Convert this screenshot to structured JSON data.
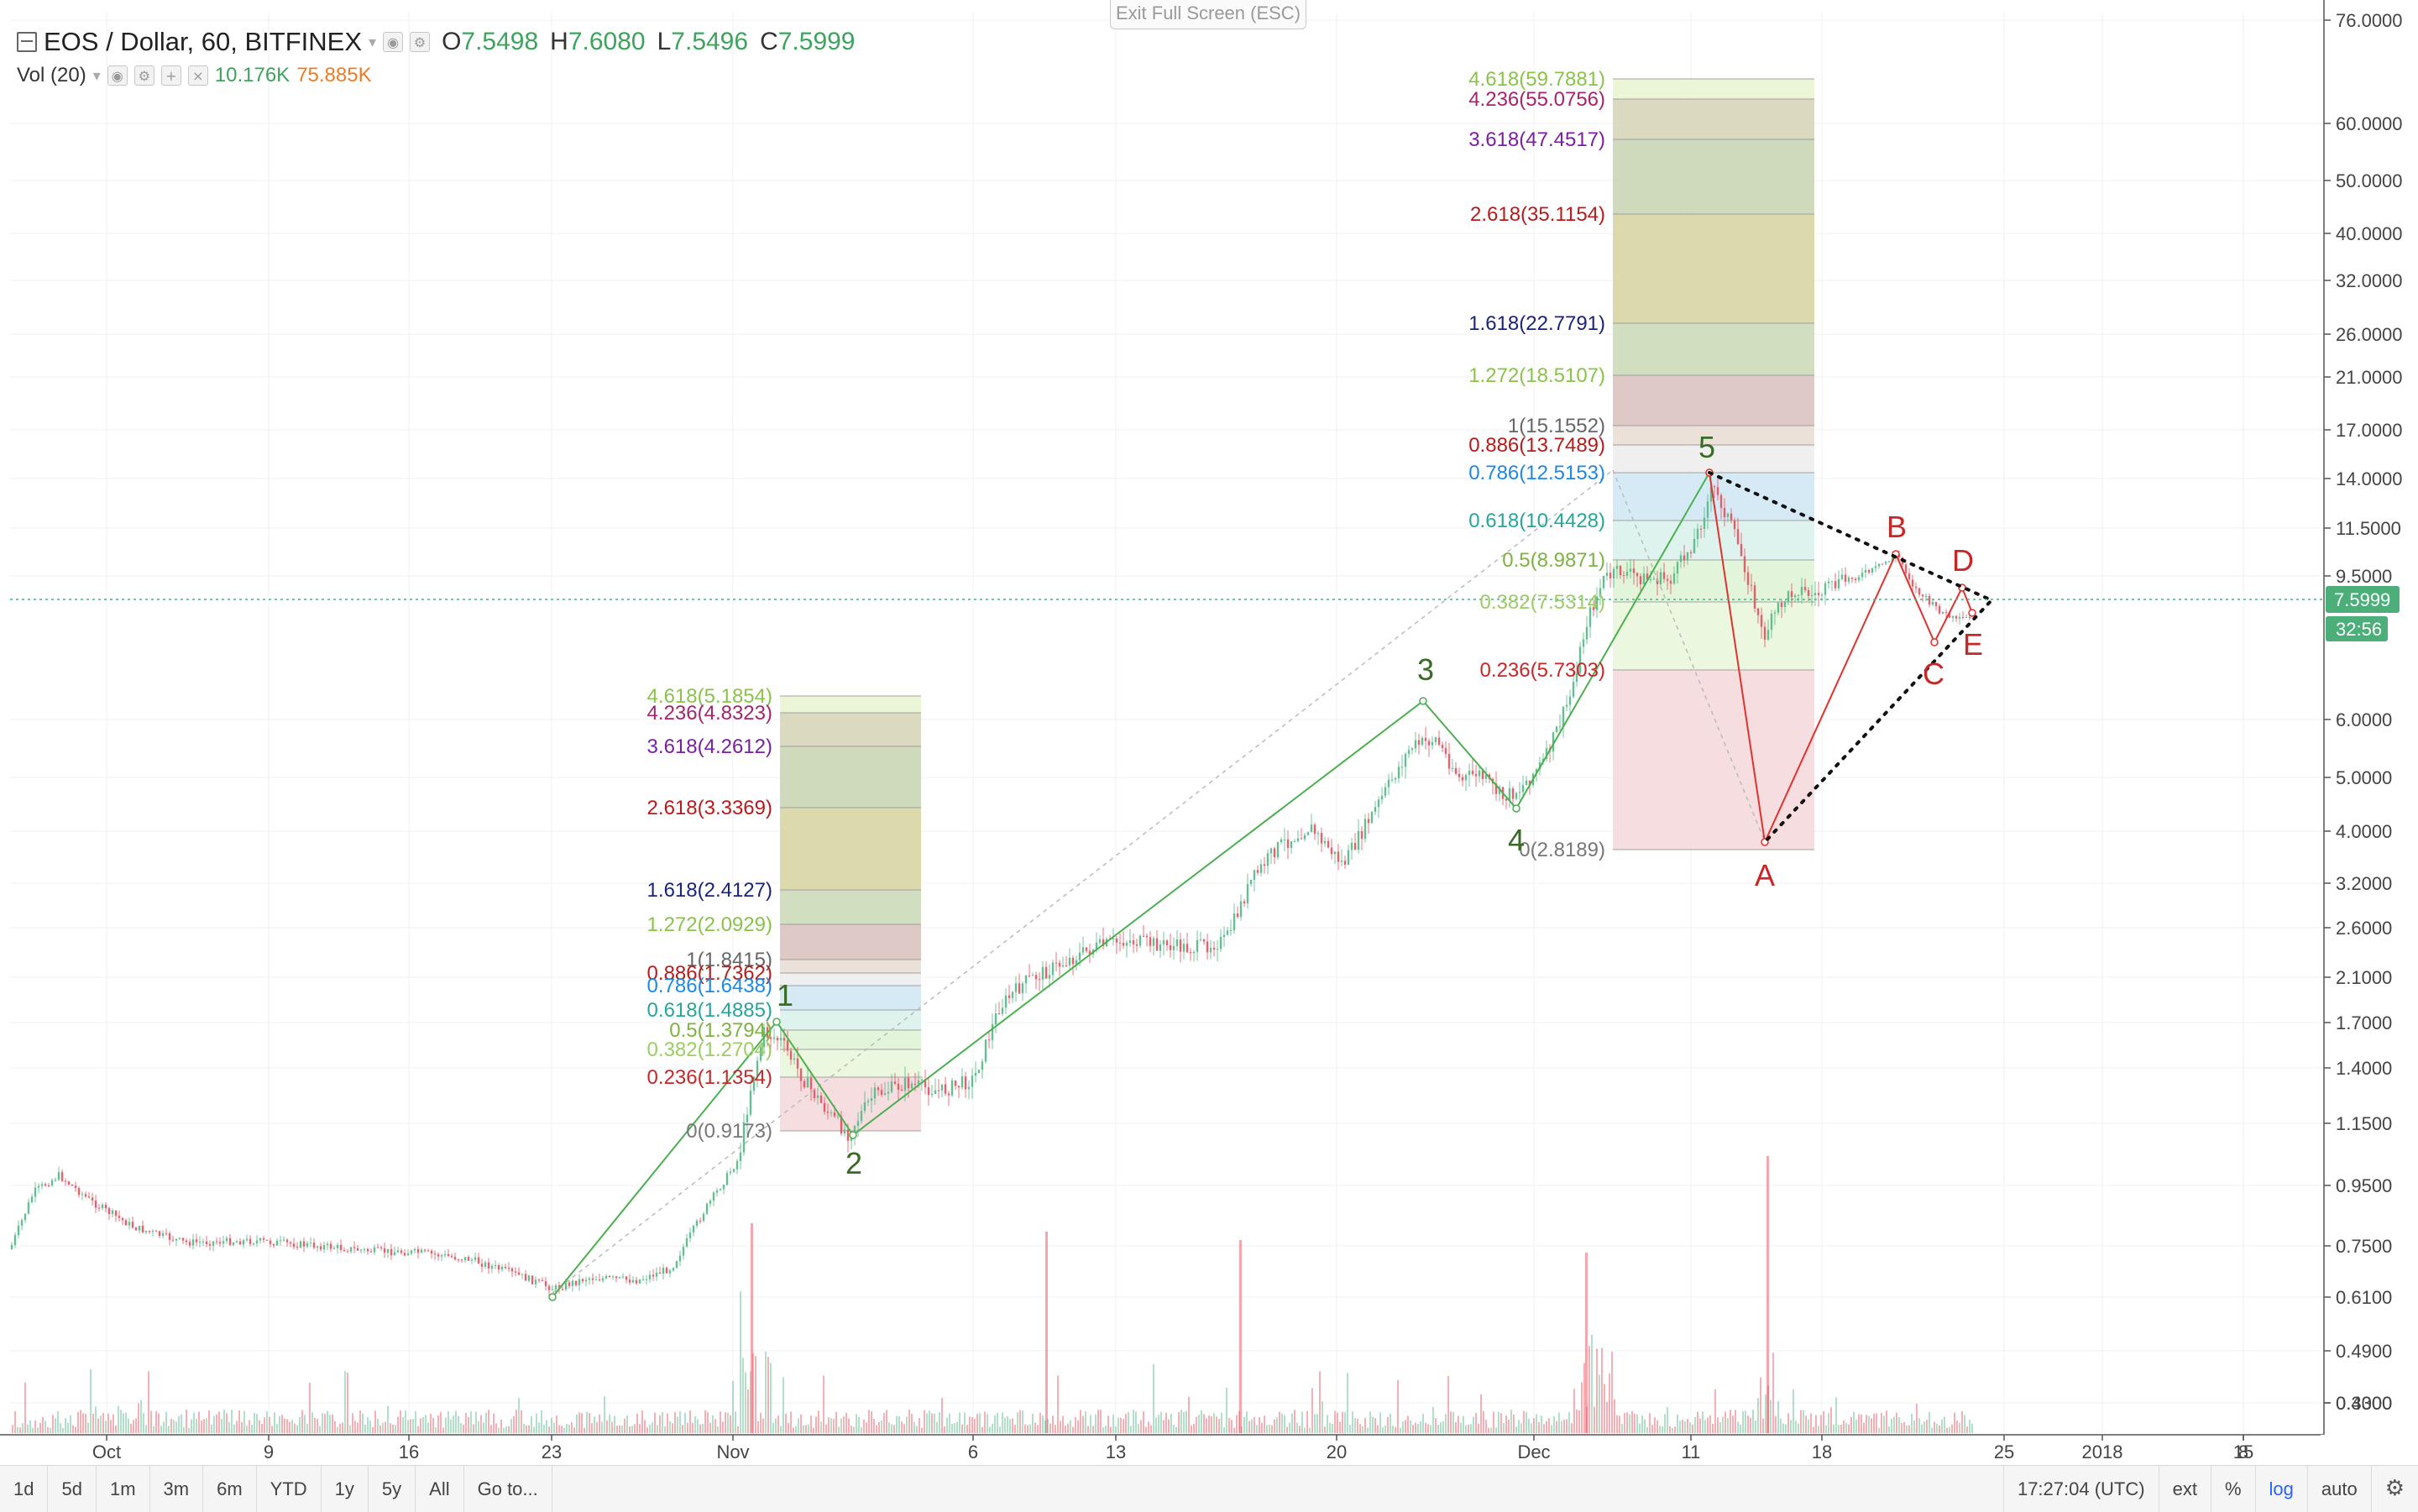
{
  "header": {
    "symbol_title": "EOS / Dollar, 60, BITFINEX",
    "ohlc": [
      {
        "label": "O",
        "value": "7.5498"
      },
      {
        "label": "H",
        "value": "7.6080"
      },
      {
        "label": "L",
        "value": "7.5496"
      },
      {
        "label": "C",
        "value": "7.5999"
      }
    ],
    "volume_label": "Vol (20)",
    "volume_values": [
      "10.176K",
      "75.885K"
    ],
    "exit_fullscreen": "Exit Full Screen (ESC)"
  },
  "price_axis": {
    "ticks": [
      "76.0000",
      "60.0000",
      "50.0000",
      "40.0000",
      "32.0000",
      "26.0000",
      "21.0000",
      "17.0000",
      "14.0000",
      "11.5000",
      "9.5000",
      "6.0000",
      "5.0000",
      "4.0000",
      "3.2000",
      "2.6000",
      "2.1000",
      "1.7000",
      "1.4000",
      "1.1500",
      "0.9500",
      "0.7500",
      "0.6100",
      "0.4900",
      "0.4000",
      "0.3300"
    ],
    "last_price": "7.5999",
    "countdown": "32:56"
  },
  "time_axis": {
    "ticks": [
      "Oct",
      "9",
      "16",
      "23",
      "Nov",
      "6",
      "13",
      "20",
      "Dec",
      "11",
      "18",
      "25",
      "2018",
      "8",
      "15"
    ]
  },
  "fib_left": {
    "levels": [
      "4.618(5.1854)",
      "4.236(4.8323)",
      "3.618(4.2612)",
      "2.618(3.3369)",
      "1.618(2.4127)",
      "1.272(2.0929)",
      "1(1.8415)",
      "0.886(1.7362)",
      "0.786(1.6438)",
      "0.618(1.4885)",
      "0.5(1.3794)",
      "0.382(1.2704)",
      "0.236(1.1354)",
      "0(0.9173)"
    ]
  },
  "fib_right": {
    "levels": [
      "4.618(59.7881)",
      "4.236(55.0756)",
      "3.618(47.4517)",
      "2.618(35.1154)",
      "1.618(22.7791)",
      "1.272(18.5107)",
      "1(15.1552)",
      "0.886(13.7489)",
      "0.786(12.5153)",
      "0.618(10.4428)",
      "0.5(8.9871)",
      "0.382(7.5314)",
      "0.236(5.7303)",
      "0(2.8189)"
    ]
  },
  "wave_labels": {
    "impulse": [
      "1",
      "2",
      "3",
      "4",
      "5"
    ],
    "corrective": [
      "A",
      "B",
      "C",
      "D",
      "E"
    ]
  },
  "colors": {
    "up": "#53b987",
    "down": "#eb4d5c",
    "impulse_line": "#4caf50",
    "impulse_label": "#3a6b26",
    "abc_line": "#e0322e",
    "abc_label": "#c62828",
    "last_price_badge": "#4caf79"
  },
  "bottom_bar": {
    "ranges": [
      "1d",
      "5d",
      "1m",
      "3m",
      "6m",
      "YTD",
      "1y",
      "5y",
      "All"
    ],
    "goto": "Go to...",
    "time": "17:27:04 (UTC)",
    "toggles": [
      "ext",
      "%",
      "log",
      "auto"
    ],
    "settings_icon": "gear-icon"
  }
}
